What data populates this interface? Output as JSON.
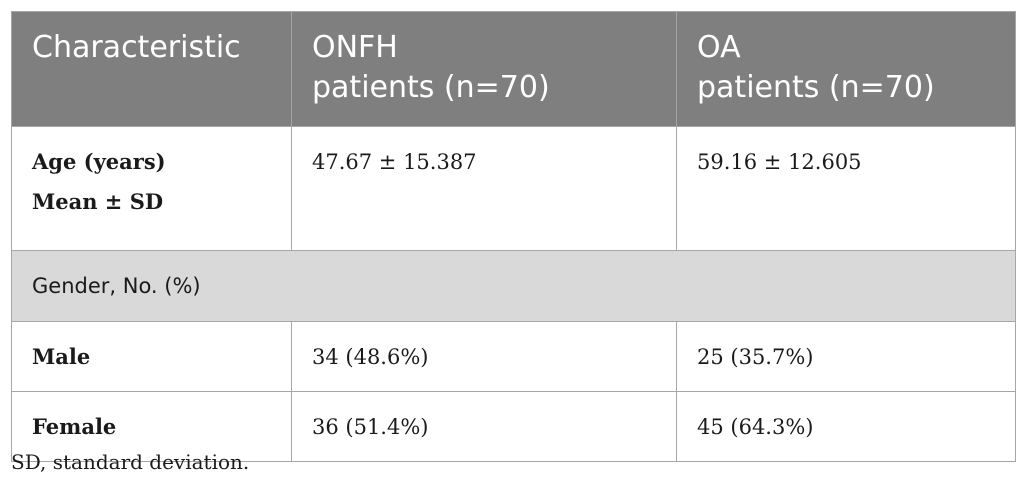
{
  "table": {
    "headers": [
      "Characteristic",
      "ONFH\npatients (n=70)",
      "OA\npatients (n=70)"
    ],
    "header_lines": [
      [
        "Characteristic"
      ],
      [
        "ONFH",
        "patients (n=70)"
      ],
      [
        "OA",
        "patients (n=70)"
      ]
    ],
    "age_row": {
      "label_line1": "Age (years)",
      "label_line2": "Mean ± SD",
      "onfh": "47.67 ± 15.387",
      "oa": "59.16 ± 12.605"
    },
    "gender_section": "Gender, No. (%)",
    "rows": [
      {
        "label": "Male",
        "onfh": "34 (48.6%)",
        "oa": "25 (35.7%)"
      },
      {
        "label": "Female",
        "onfh": "36 (51.4%)",
        "oa": "45 (64.3%)"
      }
    ]
  },
  "footnote": "SD, standard deviation.",
  "colors": {
    "header_bg": "#7f7f7f",
    "section_bg": "#d9d9d9",
    "border": "#a6a6a6"
  }
}
